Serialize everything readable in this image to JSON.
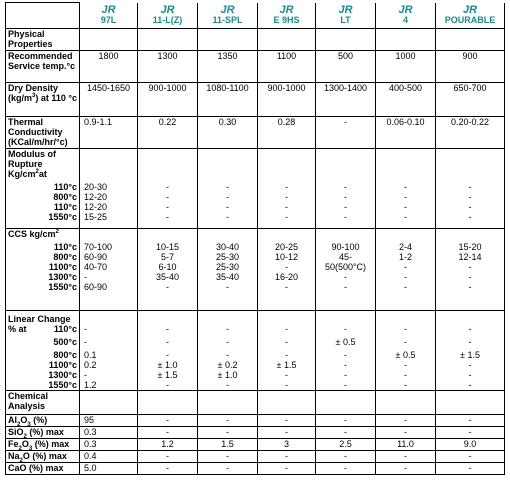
{
  "header": {
    "brand": "JR",
    "grades": [
      "97L",
      "11-L(Z)",
      "11-SPL",
      "E 9HS",
      "LT",
      "4",
      "POURABLE"
    ]
  },
  "sections": {
    "physical": "Physical Properties",
    "service_temp": {
      "label": "Recommended Service temp.°c",
      "values": [
        "1800",
        "1300",
        "1350",
        "1100",
        "500",
        "1000",
        "900"
      ]
    },
    "dry_density": {
      "label_a": "Dry Density (kg/m",
      "label_sup": "3",
      "label_b": ") at 110 °c",
      "values": [
        "1450-1650",
        "900-1000",
        "1080-1100",
        "900-1000",
        "1300-1400",
        "400-500",
        "650-700"
      ]
    },
    "thermal": {
      "label": "Thermal Conductivity (KCal/m/hr/°c)",
      "values": [
        "0.9-1.1",
        "0.22",
        "0.30",
        "0.28",
        "-",
        "0.06-0.10",
        "0.20-0.22"
      ]
    },
    "rupture": {
      "label_a": "Modulus of Rupture Kg/cm",
      "label_sup": "2",
      "label_b": "at",
      "temps": [
        "110°c",
        "800°c",
        "110°c",
        "1550°c"
      ],
      "cols": [
        [
          "20-30",
          "12-20",
          "12-20",
          "15-25"
        ],
        [
          "-",
          "-",
          "-",
          "-"
        ],
        [
          "-",
          "-",
          "-",
          "-"
        ],
        [
          "-",
          "-",
          "-",
          "-"
        ],
        [
          "-",
          "-",
          "-",
          "-"
        ],
        [
          "-",
          "-",
          "-",
          "-"
        ],
        [
          "-",
          "-",
          "-",
          "-"
        ]
      ]
    },
    "ccs": {
      "label_a": "CCS kg/cm",
      "label_sup": "2",
      "temps": [
        "110°c",
        "800°c",
        "1100°c",
        "1300°c",
        "1550°c"
      ],
      "cols": [
        [
          "70-100",
          "60-90",
          "40-70",
          "-",
          "60-90"
        ],
        [
          "10-15",
          "5-7",
          "6-10",
          "35-40",
          "-"
        ],
        [
          "30-40",
          "25-30",
          "25-30",
          "35-40",
          "-"
        ],
        [
          "20-25",
          "10-12",
          "-",
          "16-20",
          "-"
        ],
        [
          "90-100",
          "45-",
          "50(500°C)",
          "-",
          "-"
        ],
        [
          "2-4",
          "1-2",
          "-",
          "-",
          "-"
        ],
        [
          "15-20",
          "12-14",
          "-",
          "-",
          "-"
        ]
      ]
    },
    "linear": {
      "label": "Linear Change % at",
      "temps": [
        "110°c",
        "500°c",
        "800°c",
        "1100°c",
        "1300°c",
        "1550°c"
      ],
      "cols": [
        [
          "-",
          "-",
          "0.1",
          "0.2",
          "-",
          "1.2"
        ],
        [
          "-",
          "-",
          "-",
          "± 1.0",
          "± 1.5",
          "-"
        ],
        [
          "-",
          "-",
          "-",
          "± 0.2",
          "± 1.0",
          "-"
        ],
        [
          "-",
          "-",
          "-",
          "± 1.5",
          "-",
          "-"
        ],
        [
          "-",
          "± 0.5",
          "-",
          "-",
          "-",
          "-"
        ],
        [
          "-",
          "-",
          "± 0.5",
          "-",
          "-",
          "-"
        ],
        [
          "-",
          "-",
          "± 1.5",
          "-",
          "-",
          "-"
        ]
      ]
    },
    "chemical": "Chemical Analysis",
    "chem_rows": [
      {
        "a": "Al",
        "s1": "2",
        "b": "O",
        "s2": "3",
        "c": " (%)",
        "values": [
          "95",
          "-",
          "-",
          "-",
          "-",
          "-",
          "-"
        ]
      },
      {
        "a": "SiO",
        "s1": "2",
        "b": " (%) max",
        "s2": "",
        "c": "",
        "values": [
          "0.3",
          "-",
          "-",
          "-",
          "-",
          "-",
          "-"
        ]
      },
      {
        "a": "Fe",
        "s1": "2",
        "b": "O",
        "s2": "3",
        "c": " (%) max",
        "values": [
          "0.3",
          "1.2",
          "1.5",
          "3",
          "2.5",
          "11.0",
          "9.0"
        ]
      },
      {
        "a": "Na",
        "s1": "2",
        "b": "O (%) max",
        "s2": "",
        "c": "",
        "values": [
          "0.4",
          "-",
          "-",
          "-",
          "-",
          "-",
          "-"
        ]
      },
      {
        "a": "CaO (%) max",
        "s1": "",
        "b": "",
        "s2": "",
        "c": "",
        "values": [
          "5.0",
          "-",
          "-",
          "-",
          "-",
          "-",
          "-"
        ]
      }
    ]
  }
}
